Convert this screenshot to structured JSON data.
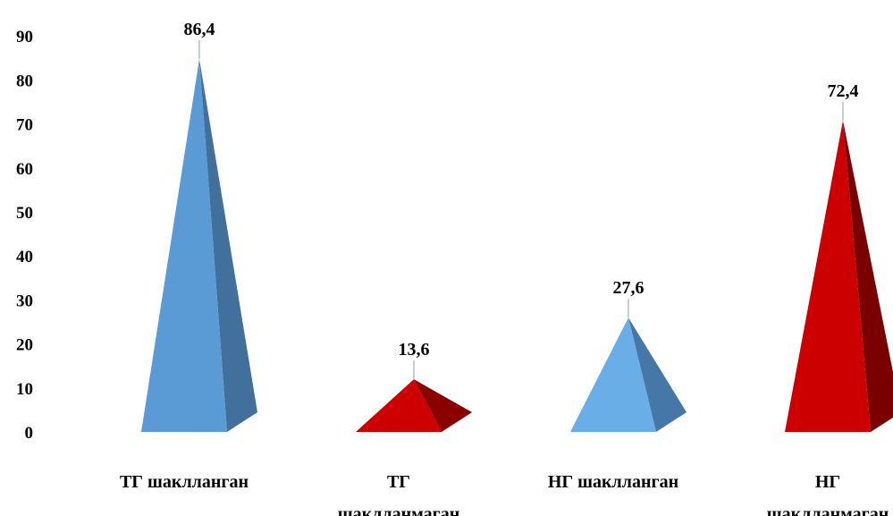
{
  "chart_data": {
    "type": "bar",
    "shape": "pyramid-3d",
    "categories": [
      [
        "ТГ шаклланган"
      ],
      [
        "ТГ",
        "шаклланмаган"
      ],
      [
        "НГ шаклланган"
      ],
      [
        "НГ",
        "шаклланмаган"
      ]
    ],
    "values": [
      86.4,
      13.6,
      27.6,
      72.4
    ],
    "data_labels": [
      "86,4",
      "13,6",
      "27,6",
      "72,4"
    ],
    "ylim": [
      0,
      90
    ],
    "yticks": [
      0,
      10,
      20,
      30,
      40,
      50,
      60,
      70,
      80,
      90
    ],
    "grid": false,
    "legend": "none",
    "colors": [
      {
        "front": "#5b9bd5",
        "side": "#41709c"
      },
      {
        "front": "#cc0000",
        "side": "#8b0000"
      },
      {
        "front": "#6aaee8",
        "side": "#4577a8"
      },
      {
        "front": "#cc0000",
        "side": "#7a0000"
      }
    ]
  }
}
